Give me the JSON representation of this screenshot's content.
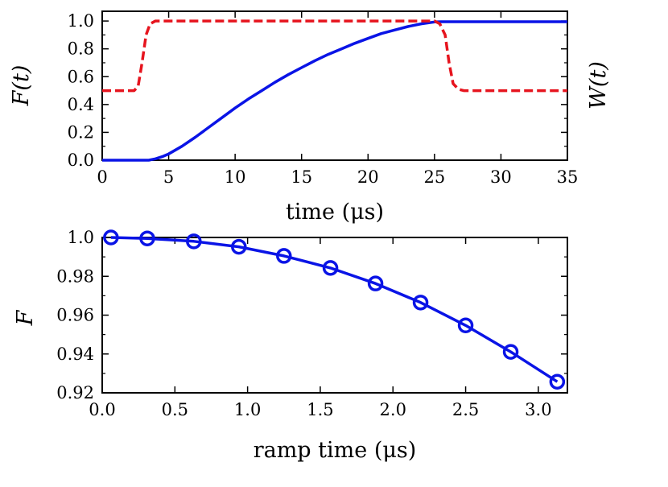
{
  "chart_data": [
    {
      "type": "line",
      "xlabel": "time (μs)",
      "ylabel": "F(t)",
      "y2label": "W(t)",
      "xlim": [
        0,
        35
      ],
      "ylim": [
        0,
        1.07
      ],
      "x_ticks": [
        "0",
        "5",
        "10",
        "15",
        "20",
        "25",
        "30",
        "35"
      ],
      "y_ticks": [
        "0.0",
        "0.2",
        "0.4",
        "0.6",
        "0.8",
        "1.0"
      ],
      "grid": false,
      "series": [
        {
          "color": "#0a14e6",
          "style": "solid",
          "x": [
            0,
            3.5,
            4.0,
            4.5,
            5,
            6,
            7,
            8,
            9,
            10,
            11,
            12,
            13,
            14,
            15,
            16,
            17,
            18,
            19,
            20,
            21,
            22,
            23,
            24,
            25,
            25.5,
            26,
            28,
            30,
            32,
            35
          ],
          "y": [
            0,
            0,
            0.01,
            0.025,
            0.045,
            0.1,
            0.165,
            0.235,
            0.305,
            0.375,
            0.44,
            0.5,
            0.56,
            0.615,
            0.665,
            0.715,
            0.76,
            0.8,
            0.84,
            0.875,
            0.91,
            0.935,
            0.96,
            0.98,
            0.993,
            0.995,
            0.995,
            0.995,
            0.995,
            0.995,
            0.995
          ]
        },
        {
          "color": "#e6141e",
          "style": "dashed",
          "x": [
            0,
            2.4,
            2.7,
            3.0,
            3.3,
            3.6,
            4.0,
            10,
            15,
            20,
            25,
            25.4,
            25.8,
            26.1,
            26.4,
            26.8,
            27.2,
            30,
            35
          ],
          "y": [
            0.5,
            0.5,
            0.53,
            0.7,
            0.9,
            0.98,
            1.0,
            1.0,
            1.0,
            1.0,
            1.0,
            0.98,
            0.9,
            0.7,
            0.55,
            0.51,
            0.5,
            0.5,
            0.5
          ]
        }
      ]
    },
    {
      "type": "line",
      "xlabel": "ramp time (μs)",
      "ylabel": "F",
      "xlim": [
        0,
        3.2
      ],
      "ylim": [
        0.92,
        1.0
      ],
      "x_ticks": [
        "0.0",
        "0.5",
        "1.0",
        "1.5",
        "2.0",
        "2.5",
        "3.0"
      ],
      "y_ticks": [
        "0.92",
        "0.94",
        "0.96",
        "0.98",
        "1.0"
      ],
      "grid": false,
      "series": [
        {
          "color": "#0a14e6",
          "style": "solid-with-circle-markers",
          "x": [
            0.06,
            0.31,
            0.63,
            0.94,
            1.25,
            1.57,
            1.88,
            2.19,
            2.5,
            2.81,
            3.13
          ],
          "y": [
            1.0,
            0.9995,
            0.998,
            0.9952,
            0.9905,
            0.9843,
            0.9763,
            0.9665,
            0.9547,
            0.9411,
            0.9257
          ]
        }
      ]
    }
  ]
}
